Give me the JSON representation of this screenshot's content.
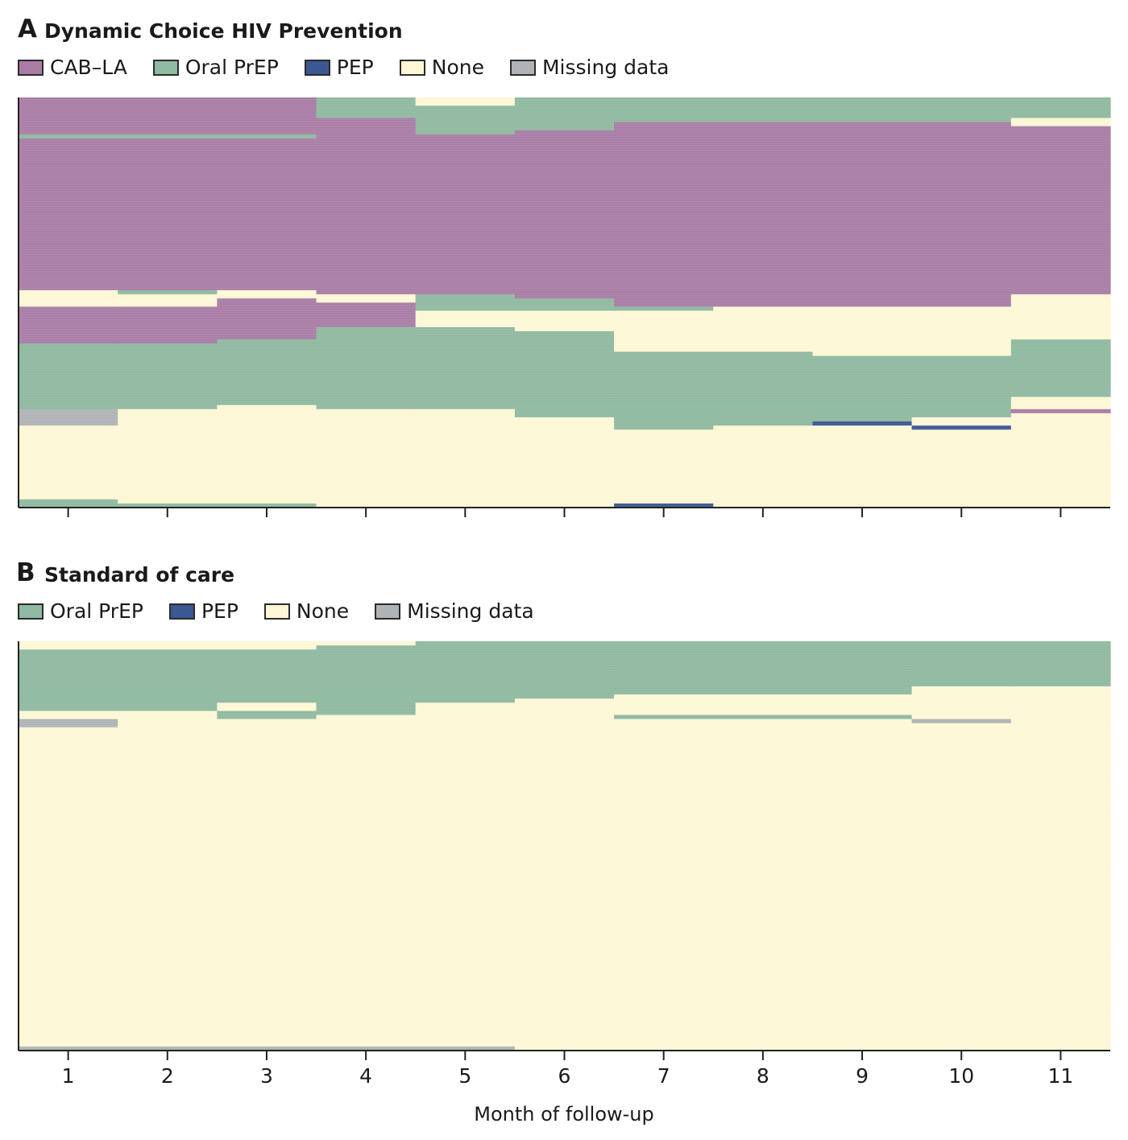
{
  "colors": {
    "CAB-LA": "#a97da6",
    "Oral PrEP": "#8fb9a0",
    "PEP": "#3b5894",
    "None": "#fdf7d6",
    "Missing data": "#b0b3b5"
  },
  "chart_data": [
    {
      "type": "heatmap",
      "panel_letter": "A",
      "title": "Dynamic Choice HIV Prevention",
      "legend": [
        "CAB–LA",
        "Oral PrEP",
        "PEP",
        "None",
        "Missing data"
      ],
      "xlabel": "Month of follow-up",
      "x": [
        1,
        2,
        3,
        4,
        5,
        6,
        7,
        8,
        9,
        10,
        11
      ],
      "tick_labels": [
        "1",
        "2",
        "3",
        "4",
        "5",
        "6",
        "7",
        "8",
        "9",
        "10",
        "11"
      ],
      "y_axis": "individual participants (sorted), proportion from top",
      "months": [
        {
          "month": 1,
          "segments": [
            [
              "CAB-LA",
              0.09
            ],
            [
              "Oral PrEP",
              0.01
            ],
            [
              "CAB-LA",
              0.37
            ],
            [
              "None",
              0.04
            ],
            [
              "CAB-LA",
              0.09
            ],
            [
              "Oral PrEP",
              0.16
            ],
            [
              "Missing data",
              0.04
            ],
            [
              "None",
              0.18
            ],
            [
              "Oral PrEP",
              0.02
            ]
          ]
        },
        {
          "month": 2,
          "segments": [
            [
              "CAB-LA",
              0.09
            ],
            [
              "Oral PrEP",
              0.01
            ],
            [
              "CAB-LA",
              0.37
            ],
            [
              "Oral PrEP",
              0.01
            ],
            [
              "None",
              0.03
            ],
            [
              "CAB-LA",
              0.09
            ],
            [
              "Oral PrEP",
              0.16
            ],
            [
              "None",
              0.23
            ],
            [
              "Oral PrEP",
              0.01
            ]
          ]
        },
        {
          "month": 3,
          "segments": [
            [
              "CAB-LA",
              0.09
            ],
            [
              "Oral PrEP",
              0.01
            ],
            [
              "CAB-LA",
              0.37
            ],
            [
              "None",
              0.02
            ],
            [
              "CAB-LA",
              0.1
            ],
            [
              "Oral PrEP",
              0.16
            ],
            [
              "None",
              0.24
            ],
            [
              "Oral PrEP",
              0.01
            ]
          ]
        },
        {
          "month": 4,
          "segments": [
            [
              "Oral PrEP",
              0.05
            ],
            [
              "CAB-LA",
              0.43
            ],
            [
              "None",
              0.02
            ],
            [
              "CAB-LA",
              0.06
            ],
            [
              "Oral PrEP",
              0.2
            ],
            [
              "None",
              0.24
            ]
          ]
        },
        {
          "month": 5,
          "segments": [
            [
              "None",
              0.02
            ],
            [
              "Oral PrEP",
              0.07
            ],
            [
              "CAB-LA",
              0.39
            ],
            [
              "Oral PrEP",
              0.04
            ],
            [
              "None",
              0.04
            ],
            [
              "Oral PrEP",
              0.2
            ],
            [
              "None",
              0.24
            ]
          ]
        },
        {
          "month": 6,
          "segments": [
            [
              "Oral PrEP",
              0.08
            ],
            [
              "CAB-LA",
              0.41
            ],
            [
              "Oral PrEP",
              0.03
            ],
            [
              "None",
              0.05
            ],
            [
              "Oral PrEP",
              0.21
            ],
            [
              "None",
              0.22
            ]
          ]
        },
        {
          "month": 7,
          "segments": [
            [
              "Oral PrEP",
              0.06
            ],
            [
              "CAB-LA",
              0.45
            ],
            [
              "Oral PrEP",
              0.01
            ],
            [
              "None",
              0.1
            ],
            [
              "Oral PrEP",
              0.19
            ],
            [
              "None",
              0.18
            ],
            [
              "PEP",
              0.01
            ]
          ]
        },
        {
          "month": 8,
          "segments": [
            [
              "Oral PrEP",
              0.06
            ],
            [
              "CAB-LA",
              0.45
            ],
            [
              "None",
              0.11
            ],
            [
              "Oral PrEP",
              0.18
            ],
            [
              "None",
              0.2
            ]
          ]
        },
        {
          "month": 9,
          "segments": [
            [
              "Oral PrEP",
              0.06
            ],
            [
              "CAB-LA",
              0.45
            ],
            [
              "None",
              0.12
            ],
            [
              "Oral PrEP",
              0.16
            ],
            [
              "PEP",
              0.01
            ],
            [
              "None",
              0.2
            ]
          ]
        },
        {
          "month": 10,
          "segments": [
            [
              "Oral PrEP",
              0.06
            ],
            [
              "CAB-LA",
              0.45
            ],
            [
              "None",
              0.12
            ],
            [
              "Oral PrEP",
              0.15
            ],
            [
              "None",
              0.02
            ],
            [
              "PEP",
              0.01
            ],
            [
              "None",
              0.19
            ]
          ]
        },
        {
          "month": 11,
          "segments": [
            [
              "Oral PrEP",
              0.05
            ],
            [
              "None",
              0.02
            ],
            [
              "CAB-LA",
              0.41
            ],
            [
              "None",
              0.11
            ],
            [
              "Oral PrEP",
              0.14
            ],
            [
              "None",
              0.03
            ],
            [
              "CAB-LA",
              0.01
            ],
            [
              "None",
              0.23
            ]
          ]
        }
      ]
    },
    {
      "type": "heatmap",
      "panel_letter": "B",
      "title": "Standard of care",
      "legend": [
        "Oral PrEP",
        "PEP",
        "None",
        "Missing data"
      ],
      "xlabel": "Month of follow-up",
      "x": [
        1,
        2,
        3,
        4,
        5,
        6,
        7,
        8,
        9,
        10,
        11
      ],
      "tick_labels": [
        "1",
        "2",
        "3",
        "4",
        "5",
        "6",
        "7",
        "8",
        "9",
        "10",
        "11"
      ],
      "y_axis": "individual participants (sorted), proportion from top",
      "months": [
        {
          "month": 1,
          "segments": [
            [
              "None",
              0.02
            ],
            [
              "Oral PrEP",
              0.15
            ],
            [
              "None",
              0.02
            ],
            [
              "Missing data",
              0.02
            ],
            [
              "None",
              0.78
            ],
            [
              "Missing data",
              0.01
            ]
          ]
        },
        {
          "month": 2,
          "segments": [
            [
              "None",
              0.02
            ],
            [
              "Oral PrEP",
              0.15
            ],
            [
              "None",
              0.02
            ],
            [
              "None",
              0.8
            ],
            [
              "Missing data",
              0.01
            ]
          ]
        },
        {
          "month": 3,
          "segments": [
            [
              "None",
              0.02
            ],
            [
              "Oral PrEP",
              0.13
            ],
            [
              "None",
              0.02
            ],
            [
              "Oral PrEP",
              0.02
            ],
            [
              "None",
              0.8
            ],
            [
              "Missing data",
              0.01
            ]
          ]
        },
        {
          "month": 4,
          "segments": [
            [
              "None",
              0.01
            ],
            [
              "Oral PrEP",
              0.17
            ],
            [
              "None",
              0.81
            ],
            [
              "Missing data",
              0.01
            ]
          ]
        },
        {
          "month": 5,
          "segments": [
            [
              "Oral PrEP",
              0.15
            ],
            [
              "None",
              0.84
            ],
            [
              "Missing data",
              0.01
            ]
          ]
        },
        {
          "month": 6,
          "segments": [
            [
              "Oral PrEP",
              0.14
            ],
            [
              "None",
              0.86
            ]
          ]
        },
        {
          "month": 7,
          "segments": [
            [
              "Oral PrEP",
              0.13
            ],
            [
              "None",
              0.05
            ],
            [
              "Oral PrEP",
              0.01
            ],
            [
              "None",
              0.81
            ]
          ]
        },
        {
          "month": 8,
          "segments": [
            [
              "Oral PrEP",
              0.13
            ],
            [
              "None",
              0.05
            ],
            [
              "Oral PrEP",
              0.01
            ],
            [
              "None",
              0.81
            ]
          ]
        },
        {
          "month": 9,
          "segments": [
            [
              "Oral PrEP",
              0.13
            ],
            [
              "None",
              0.05
            ],
            [
              "Oral PrEP",
              0.01
            ],
            [
              "None",
              0.81
            ]
          ]
        },
        {
          "month": 10,
          "segments": [
            [
              "Oral PrEP",
              0.11
            ],
            [
              "None",
              0.08
            ],
            [
              "Missing data",
              0.01
            ],
            [
              "None",
              0.8
            ]
          ]
        },
        {
          "month": 11,
          "segments": [
            [
              "Oral PrEP",
              0.11
            ],
            [
              "None",
              0.89
            ]
          ]
        }
      ]
    }
  ]
}
